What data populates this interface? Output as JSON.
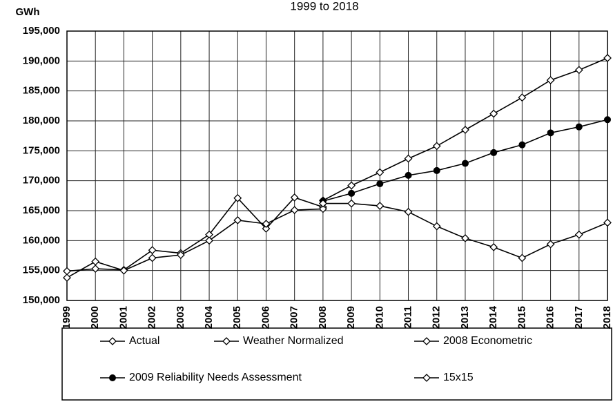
{
  "chart_data": {
    "type": "line",
    "title": "1999 to 2018",
    "y_label": "GWh",
    "categories": [
      "1999",
      "2000",
      "2001",
      "2002",
      "2003",
      "2004",
      "2005",
      "2006",
      "2007",
      "2008",
      "2009",
      "2010",
      "2011",
      "2012",
      "2013",
      "2014",
      "2015",
      "2016",
      "2017",
      "2018"
    ],
    "ylim": [
      150000,
      195000
    ],
    "yticks": [
      {
        "value": 150000,
        "label": "150,000"
      },
      {
        "value": 155000,
        "label": "155,000"
      },
      {
        "value": 160000,
        "label": "160,000"
      },
      {
        "value": 165000,
        "label": "165,000"
      },
      {
        "value": 170000,
        "label": "170,000"
      },
      {
        "value": 175000,
        "label": "175,000"
      },
      {
        "value": 180000,
        "label": "180,000"
      },
      {
        "value": 185000,
        "label": "185,000"
      },
      {
        "value": 190000,
        "label": "190,000"
      },
      {
        "value": 195000,
        "label": "195,000"
      }
    ],
    "grid": true,
    "series": [
      {
        "name": "Actual",
        "color": "#000000",
        "marker": "diamond-open",
        "values": [
          154900,
          155300,
          155100,
          158400,
          157900,
          161000,
          167100,
          162000,
          167200,
          165600,
          null,
          null,
          null,
          null,
          null,
          null,
          null,
          null,
          null,
          null
        ]
      },
      {
        "name": "Weather Normalized",
        "color": "#000000",
        "marker": "diamond-open",
        "values": [
          153800,
          156500,
          155000,
          157100,
          157600,
          160000,
          163400,
          162800,
          165100,
          165300,
          null,
          null,
          null,
          null,
          null,
          null,
          null,
          null,
          null,
          null
        ]
      },
      {
        "name": "2008 Econometric",
        "color": "#000000",
        "marker": "diamond-open",
        "values": [
          null,
          null,
          null,
          null,
          null,
          null,
          null,
          null,
          null,
          166700,
          169200,
          171400,
          173700,
          175800,
          178500,
          181200,
          183900,
          186800,
          188500,
          190500
        ]
      },
      {
        "name": "2009 Reliability Needs Assessment",
        "color": "#000000",
        "marker": "circle-filled",
        "values": [
          null,
          null,
          null,
          null,
          null,
          null,
          null,
          null,
          null,
          166600,
          167900,
          169500,
          170900,
          171700,
          172900,
          174700,
          176000,
          178000,
          179000,
          180200
        ]
      },
      {
        "name": "15x15",
        "color": "#000000",
        "marker": "diamond-open",
        "values": [
          null,
          null,
          null,
          null,
          null,
          null,
          null,
          null,
          null,
          166200,
          166200,
          165800,
          164800,
          162400,
          160400,
          158900,
          157100,
          159400,
          161000,
          163000
        ]
      }
    ]
  }
}
